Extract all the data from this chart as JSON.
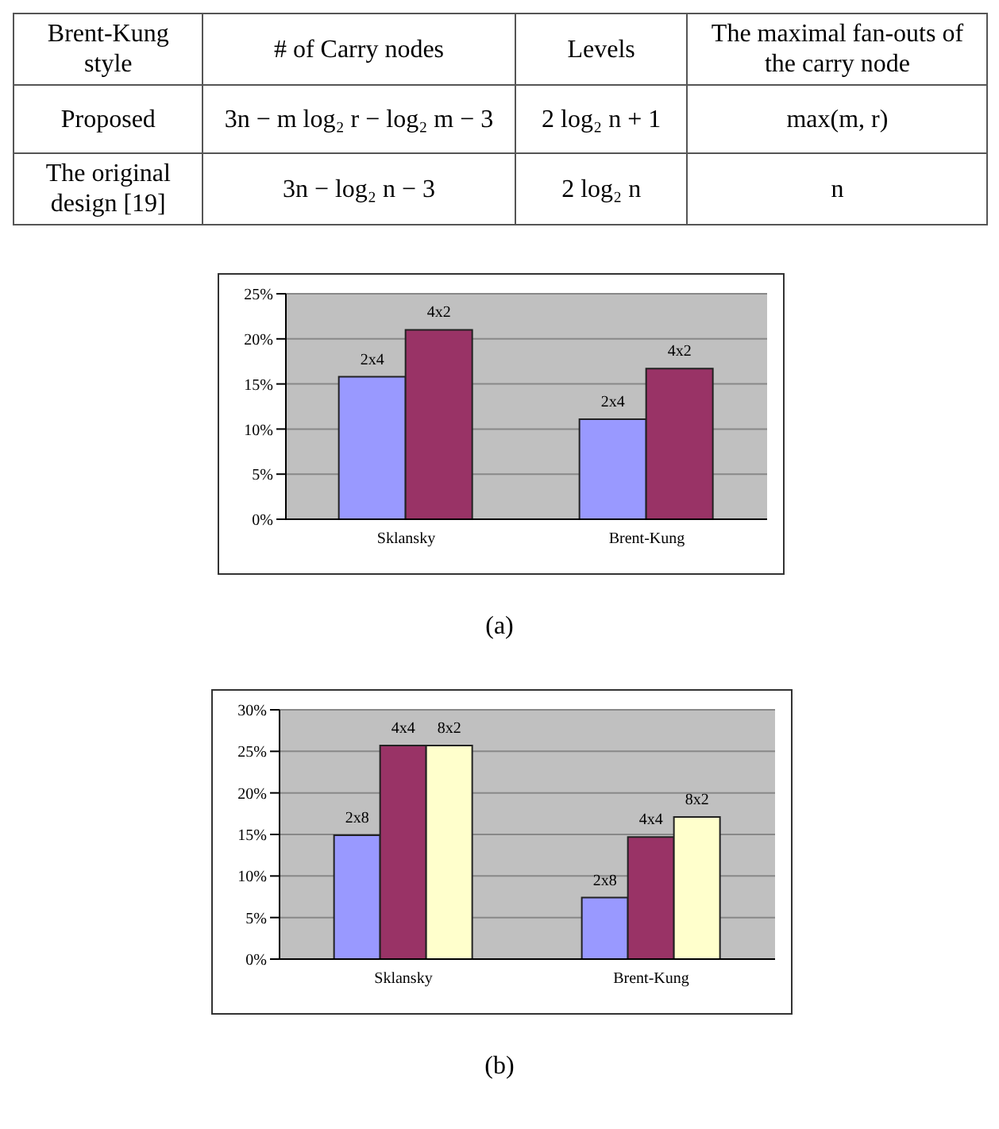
{
  "chart_data": [
    {
      "type": "other",
      "categories": [
        "Brent-Kung style",
        "# of Carry nodes",
        "Levels",
        "The maximal fan-outs of the carry node"
      ],
      "cell_labels": [
        [
          "Proposed",
          "3n − m log₂ r − log₂ m − 3",
          "2 log₂ n + 1",
          "max(m, r)"
        ],
        [
          "The original design [19]",
          "3n − log₂ n − 3",
          "2 log₂ n",
          "n"
        ]
      ]
    },
    {
      "type": "bar",
      "categories": [
        "Sklansky",
        "Brent-Kung"
      ],
      "series": [
        {
          "name": "2x4",
          "color": "#9999ff",
          "values": [
            15.8,
            11.1
          ]
        },
        {
          "name": "4x2",
          "color": "#993366",
          "values": [
            21,
            16.7
          ]
        }
      ],
      "ylim": [
        0,
        25
      ],
      "yticks": [
        {
          "value": 0,
          "label": "0%"
        },
        {
          "value": 5,
          "label": "5%"
        },
        {
          "value": 10,
          "label": "10%"
        },
        {
          "value": 15,
          "label": "15%"
        },
        {
          "value": 20,
          "label": "20%"
        },
        {
          "value": 25,
          "label": "25%"
        }
      ],
      "grid": "y",
      "annotations": [
        "(a)"
      ]
    },
    {
      "type": "bar",
      "categories": [
        "Sklansky",
        "Brent-Kung"
      ],
      "series": [
        {
          "name": "2x8",
          "color": "#9999ff",
          "values": [
            14.9,
            7.4
          ]
        },
        {
          "name": "4x4",
          "color": "#993366",
          "values": [
            25.7,
            14.7
          ]
        },
        {
          "name": "8x2",
          "color": "#ffffcc",
          "values": [
            25.7,
            17.1
          ]
        }
      ],
      "ylim": [
        0,
        30
      ],
      "yticks": [
        {
          "value": 0,
          "label": "0%"
        },
        {
          "value": 5,
          "label": "5%"
        },
        {
          "value": 10,
          "label": "10%"
        },
        {
          "value": 15,
          "label": "15%"
        },
        {
          "value": 20,
          "label": "20%"
        },
        {
          "value": 25,
          "label": "25%"
        },
        {
          "value": 30,
          "label": "30%"
        }
      ],
      "grid": "y",
      "annotations": [
        "(b)"
      ]
    }
  ]
}
